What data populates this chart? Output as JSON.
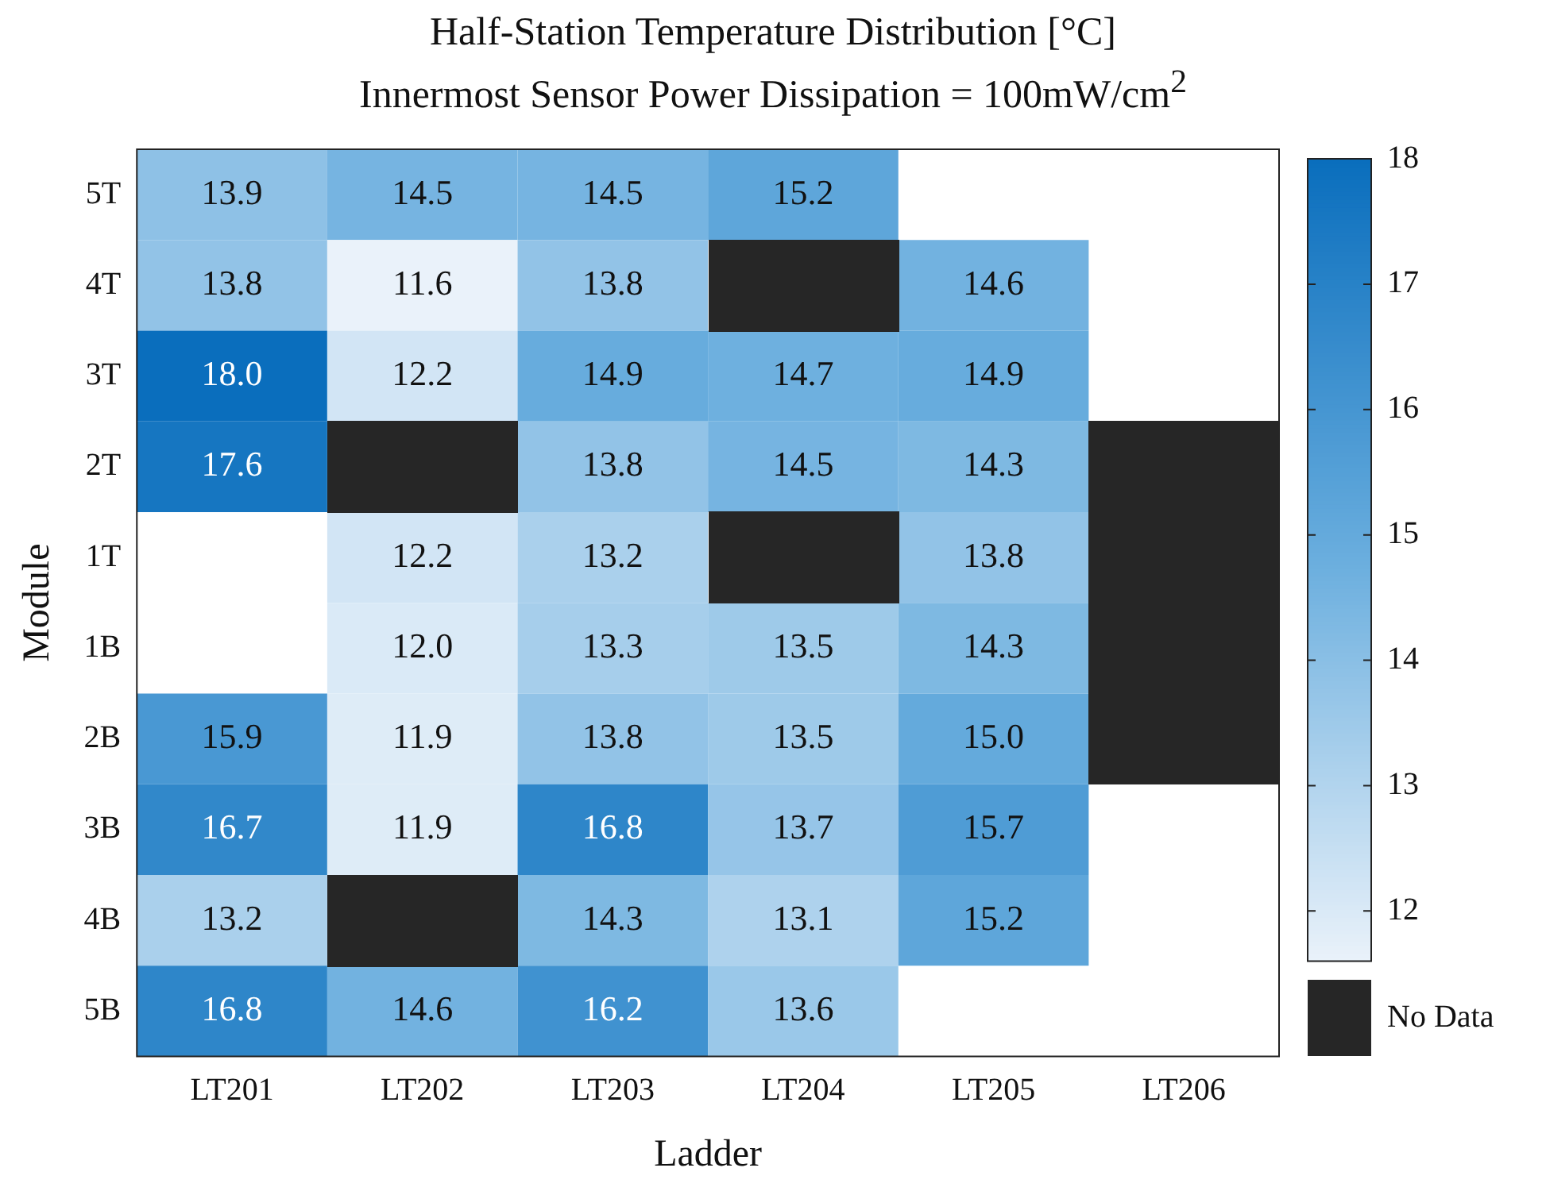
{
  "chart_data": {
    "type": "heatmap",
    "title": "Half-Station Temperature Distribution [°C]",
    "subtitle": "Innermost Sensor Power Dissipation = 100mW/cm$^{2}$",
    "xlabel": "Ladder",
    "ylabel": "Module",
    "categories": [
      "LT201",
      "LT202",
      "LT203",
      "LT204",
      "LT205",
      "LT206"
    ],
    "y_categories": [
      "5T",
      "4T",
      "3T",
      "2T",
      "1T",
      "1B",
      "2B",
      "3B",
      "4B",
      "5B"
    ],
    "cells": [
      [
        13.9,
        14.5,
        14.5,
        15.2,
        null,
        null
      ],
      [
        13.8,
        11.6,
        13.8,
        null,
        14.6,
        null
      ],
      [
        18.0,
        12.2,
        14.9,
        14.7,
        14.9,
        null
      ],
      [
        17.6,
        null,
        13.8,
        14.5,
        14.3,
        null
      ],
      [
        null,
        12.2,
        13.2,
        null,
        13.8,
        null
      ],
      [
        null,
        12.0,
        13.3,
        13.5,
        14.3,
        null
      ],
      [
        15.9,
        11.9,
        13.8,
        13.5,
        15.0,
        null
      ],
      [
        16.7,
        11.9,
        16.8,
        13.7,
        15.7,
        null
      ],
      [
        13.2,
        null,
        14.3,
        13.1,
        15.2,
        null
      ],
      [
        16.8,
        14.6,
        16.2,
        13.6,
        null,
        null
      ]
    ],
    "cell_labels": [
      [
        "13.9",
        "14.5",
        "14.5",
        "15.2",
        null,
        null
      ],
      [
        "13.8",
        "11.6",
        "13.8",
        null,
        "14.6",
        null
      ],
      [
        "18.0",
        "12.2",
        "14.9",
        "14.7",
        "14.9",
        null
      ],
      [
        "17.6",
        null,
        "13.8",
        "14.5",
        "14.3",
        null
      ],
      [
        null,
        "12.2",
        "13.2",
        null,
        "13.8",
        null
      ],
      [
        null,
        "12.0",
        "13.3",
        "13.5",
        "14.3",
        null
      ],
      [
        "15.9",
        "11.9",
        "13.8",
        "13.5",
        "15.0",
        null
      ],
      [
        "16.7",
        "11.9",
        "16.8",
        "13.7",
        "15.7",
        null
      ],
      [
        "13.2",
        null,
        "14.3",
        "13.1",
        "15.2",
        null
      ],
      [
        "16.8",
        "14.6",
        "16.2",
        "13.6",
        null,
        null
      ]
    ],
    "annotations": [
      "No Data"
    ],
    "clim": [
      11.6,
      18
    ],
    "cticks": [
      12,
      13,
      14,
      15,
      16,
      17,
      18
    ]
  }
}
